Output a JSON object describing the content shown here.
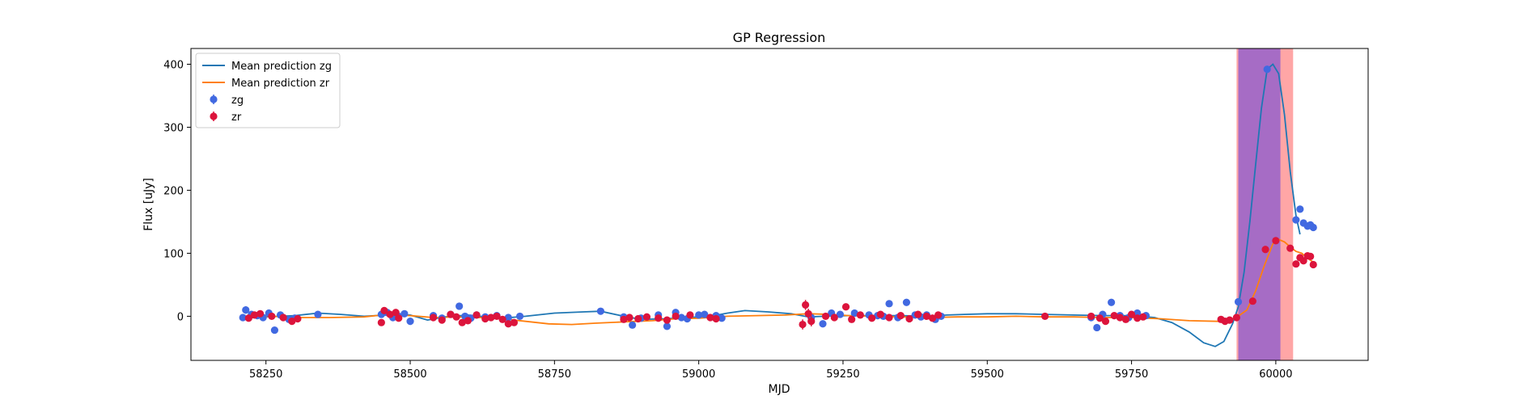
{
  "chart_data": {
    "type": "scatter",
    "title": "GP Regression",
    "xlabel": "MJD",
    "ylabel": "Flux [uJy]",
    "xlim": [
      58120,
      60160
    ],
    "ylim": [
      -70,
      425
    ],
    "xticks": [
      58250,
      58500,
      58750,
      59000,
      59250,
      59500,
      59750,
      60000
    ],
    "yticks": [
      0,
      100,
      200,
      300,
      400
    ],
    "legend_position": "upper-left",
    "grid": false,
    "shaded_regions": [
      {
        "x0": 59932,
        "x1": 60030,
        "color": "#ff0000",
        "opacity": 0.35
      },
      {
        "x0": 59935,
        "x1": 60008,
        "color": "#0000ff",
        "opacity": 0.35
      }
    ],
    "lines": [
      {
        "name": "Mean prediction zg",
        "color": "#1f77b4",
        "points": [
          [
            58210,
            -3
          ],
          [
            58250,
            -1
          ],
          [
            58300,
            1
          ],
          [
            58340,
            5
          ],
          [
            58380,
            3
          ],
          [
            58420,
            0
          ],
          [
            58460,
            2
          ],
          [
            58500,
            2
          ],
          [
            58530,
            -6
          ],
          [
            58560,
            -1
          ],
          [
            58600,
            2
          ],
          [
            58630,
            -1
          ],
          [
            58660,
            -3
          ],
          [
            58700,
            0
          ],
          [
            58750,
            5
          ],
          [
            58800,
            7
          ],
          [
            58830,
            8
          ],
          [
            58870,
            0
          ],
          [
            58900,
            -5
          ],
          [
            58940,
            -4
          ],
          [
            58980,
            -2
          ],
          [
            59020,
            0
          ],
          [
            59050,
            5
          ],
          [
            59080,
            9
          ],
          [
            59120,
            7
          ],
          [
            59160,
            4
          ],
          [
            59190,
            -1
          ],
          [
            59220,
            0
          ],
          [
            59260,
            1
          ],
          [
            59300,
            1
          ],
          [
            59350,
            1
          ],
          [
            59400,
            0
          ],
          [
            59430,
            2
          ],
          [
            59460,
            3
          ],
          [
            59500,
            4
          ],
          [
            59550,
            4
          ],
          [
            59600,
            3
          ],
          [
            59650,
            2
          ],
          [
            59700,
            1
          ],
          [
            59750,
            1
          ],
          [
            59790,
            -2
          ],
          [
            59820,
            -10
          ],
          [
            59850,
            -25
          ],
          [
            59875,
            -42
          ],
          [
            59895,
            -48
          ],
          [
            59910,
            -40
          ],
          [
            59925,
            -12
          ],
          [
            59935,
            15
          ],
          [
            59945,
            70
          ],
          [
            59955,
            150
          ],
          [
            59965,
            240
          ],
          [
            59975,
            330
          ],
          [
            59985,
            392
          ],
          [
            59995,
            400
          ],
          [
            60005,
            385
          ],
          [
            60015,
            320
          ],
          [
            60025,
            230
          ],
          [
            60035,
            160
          ],
          [
            60042,
            130
          ]
        ]
      },
      {
        "name": "Mean prediction zr",
        "color": "#ff7f0e",
        "points": [
          [
            58210,
            -1
          ],
          [
            58260,
            0
          ],
          [
            58300,
            -2
          ],
          [
            58360,
            -2
          ],
          [
            58420,
            -1
          ],
          [
            58460,
            3
          ],
          [
            58500,
            1
          ],
          [
            58540,
            -2
          ],
          [
            58580,
            -1
          ],
          [
            58620,
            -2
          ],
          [
            58660,
            -4
          ],
          [
            58700,
            -8
          ],
          [
            58740,
            -12
          ],
          [
            58780,
            -13
          ],
          [
            58820,
            -11
          ],
          [
            58870,
            -9
          ],
          [
            58920,
            -7
          ],
          [
            58960,
            -4
          ],
          [
            59000,
            -3
          ],
          [
            59050,
            0
          ],
          [
            59100,
            1
          ],
          [
            59150,
            2
          ],
          [
            59190,
            4
          ],
          [
            59230,
            3
          ],
          [
            59260,
            1
          ],
          [
            59300,
            0
          ],
          [
            59350,
            -1
          ],
          [
            59400,
            -2
          ],
          [
            59450,
            -1
          ],
          [
            59500,
            -1
          ],
          [
            59550,
            0
          ],
          [
            59600,
            -1
          ],
          [
            59650,
            -1
          ],
          [
            59700,
            -2
          ],
          [
            59750,
            -2
          ],
          [
            59800,
            -4
          ],
          [
            59850,
            -7
          ],
          [
            59900,
            -8
          ],
          [
            59930,
            -3
          ],
          [
            59950,
            10
          ],
          [
            59965,
            40
          ],
          [
            59980,
            80
          ],
          [
            59995,
            115
          ],
          [
            60005,
            122
          ],
          [
            60015,
            118
          ],
          [
            60025,
            110
          ],
          [
            60035,
            103
          ],
          [
            60045,
            100
          ],
          [
            60055,
            92
          ],
          [
            60065,
            86
          ]
        ]
      }
    ],
    "series": [
      {
        "name": "zg",
        "color": "#4169e1",
        "points": [
          [
            58210,
            -2,
            5
          ],
          [
            58215,
            10,
            6
          ],
          [
            58225,
            3,
            4
          ],
          [
            58235,
            1,
            3
          ],
          [
            58245,
            -2,
            3
          ],
          [
            58255,
            5,
            4
          ],
          [
            58265,
            -22,
            3
          ],
          [
            58275,
            2,
            3
          ],
          [
            58290,
            -5,
            3
          ],
          [
            58300,
            -3,
            4
          ],
          [
            58340,
            3,
            3
          ],
          [
            58450,
            3,
            4
          ],
          [
            58460,
            6,
            4
          ],
          [
            58470,
            -2,
            3
          ],
          [
            58480,
            0,
            3
          ],
          [
            58490,
            4,
            3
          ],
          [
            58500,
            -8,
            3
          ],
          [
            58540,
            1,
            3
          ],
          [
            58555,
            -3,
            4
          ],
          [
            58570,
            3,
            3
          ],
          [
            58585,
            16,
            4
          ],
          [
            58595,
            0,
            3
          ],
          [
            58605,
            -3,
            4
          ],
          [
            58615,
            2,
            3
          ],
          [
            58630,
            -1,
            3
          ],
          [
            58650,
            1,
            4
          ],
          [
            58670,
            -2,
            3
          ],
          [
            58690,
            0,
            3
          ],
          [
            58830,
            8,
            3
          ],
          [
            58870,
            -1,
            3
          ],
          [
            58885,
            -14,
            4
          ],
          [
            58900,
            -3,
            3
          ],
          [
            58930,
            2,
            3
          ],
          [
            58945,
            -16,
            4
          ],
          [
            58960,
            6,
            3
          ],
          [
            58970,
            -2,
            3
          ],
          [
            58980,
            -4,
            3
          ],
          [
            59000,
            2,
            3
          ],
          [
            59010,
            3,
            3
          ],
          [
            59030,
            1,
            3
          ],
          [
            59040,
            -3,
            3
          ],
          [
            59195,
            -2,
            6
          ],
          [
            59215,
            -12,
            5
          ],
          [
            59230,
            5,
            3
          ],
          [
            59245,
            3,
            3
          ],
          [
            59270,
            5,
            3
          ],
          [
            59295,
            2,
            3
          ],
          [
            59310,
            1,
            3
          ],
          [
            59320,
            0,
            4
          ],
          [
            59330,
            20,
            4
          ],
          [
            59345,
            -2,
            3
          ],
          [
            59360,
            22,
            4
          ],
          [
            59375,
            2,
            3
          ],
          [
            59385,
            -1,
            3
          ],
          [
            59395,
            2,
            3
          ],
          [
            59410,
            -5,
            4
          ],
          [
            59420,
            0,
            3
          ],
          [
            59680,
            -2,
            4
          ],
          [
            59690,
            -18,
            5
          ],
          [
            59700,
            3,
            3
          ],
          [
            59715,
            22,
            4
          ],
          [
            59730,
            1,
            3
          ],
          [
            59745,
            -2,
            3
          ],
          [
            59760,
            5,
            3
          ],
          [
            59775,
            1,
            3
          ],
          [
            59935,
            23,
            3
          ],
          [
            59985,
            392,
            3
          ],
          [
            60035,
            153,
            3
          ],
          [
            60042,
            170,
            4
          ],
          [
            60048,
            148,
            3
          ],
          [
            60055,
            143,
            3
          ],
          [
            60060,
            145,
            3
          ],
          [
            60065,
            141,
            3
          ]
        ]
      },
      {
        "name": "zr",
        "color": "#dc143c",
        "points": [
          [
            58220,
            -3,
            3
          ],
          [
            58230,
            2,
            3
          ],
          [
            58240,
            4,
            3
          ],
          [
            58260,
            0,
            3
          ],
          [
            58280,
            -2,
            3
          ],
          [
            58295,
            -8,
            4
          ],
          [
            58305,
            -4,
            3
          ],
          [
            58450,
            -10,
            4
          ],
          [
            58455,
            9,
            5
          ],
          [
            58465,
            3,
            4
          ],
          [
            58475,
            6,
            4
          ],
          [
            58480,
            -3,
            4
          ],
          [
            58540,
            -2,
            3
          ],
          [
            58555,
            -6,
            4
          ],
          [
            58570,
            3,
            3
          ],
          [
            58580,
            -1,
            3
          ],
          [
            58590,
            -10,
            5
          ],
          [
            58600,
            -7,
            4
          ],
          [
            58615,
            2,
            3
          ],
          [
            58630,
            -4,
            3
          ],
          [
            58640,
            -2,
            3
          ],
          [
            58650,
            0,
            4
          ],
          [
            58660,
            -5,
            4
          ],
          [
            58670,
            -12,
            3
          ],
          [
            58680,
            -10,
            3
          ],
          [
            58870,
            -5,
            3
          ],
          [
            58880,
            -2,
            3
          ],
          [
            58895,
            -4,
            3
          ],
          [
            58910,
            -1,
            3
          ],
          [
            58930,
            -3,
            3
          ],
          [
            58945,
            -6,
            3
          ],
          [
            58960,
            0,
            3
          ],
          [
            58985,
            2,
            3
          ],
          [
            59020,
            -2,
            3
          ],
          [
            59030,
            -4,
            3
          ],
          [
            59180,
            -13,
            8
          ],
          [
            59185,
            18,
            8
          ],
          [
            59190,
            4,
            8
          ],
          [
            59195,
            -8,
            8
          ],
          [
            59220,
            0,
            3
          ],
          [
            59235,
            -2,
            3
          ],
          [
            59255,
            15,
            4
          ],
          [
            59265,
            -5,
            3
          ],
          [
            59280,
            2,
            3
          ],
          [
            59300,
            -3,
            3
          ],
          [
            59315,
            3,
            3
          ],
          [
            59330,
            -2,
            3
          ],
          [
            59350,
            1,
            3
          ],
          [
            59365,
            -4,
            3
          ],
          [
            59380,
            3,
            3
          ],
          [
            59395,
            0,
            3
          ],
          [
            59405,
            -3,
            3
          ],
          [
            59415,
            2,
            3
          ],
          [
            59600,
            0,
            3
          ],
          [
            59680,
            0,
            3
          ],
          [
            59695,
            -3,
            3
          ],
          [
            59705,
            -8,
            4
          ],
          [
            59720,
            1,
            3
          ],
          [
            59730,
            -2,
            3
          ],
          [
            59740,
            -5,
            3
          ],
          [
            59750,
            3,
            3
          ],
          [
            59760,
            -3,
            3
          ],
          [
            59770,
            -1,
            3
          ],
          [
            59905,
            -5,
            4
          ],
          [
            59912,
            -8,
            4
          ],
          [
            59920,
            -6,
            4
          ],
          [
            59932,
            -2,
            3
          ],
          [
            59960,
            24,
            3
          ],
          [
            59982,
            106,
            3
          ],
          [
            60000,
            120,
            3
          ],
          [
            60025,
            108,
            3
          ],
          [
            60035,
            83,
            3
          ],
          [
            60042,
            93,
            3
          ],
          [
            60048,
            88,
            3
          ],
          [
            60055,
            96,
            3
          ],
          [
            60060,
            95,
            3
          ],
          [
            60065,
            82,
            3
          ]
        ]
      }
    ]
  }
}
